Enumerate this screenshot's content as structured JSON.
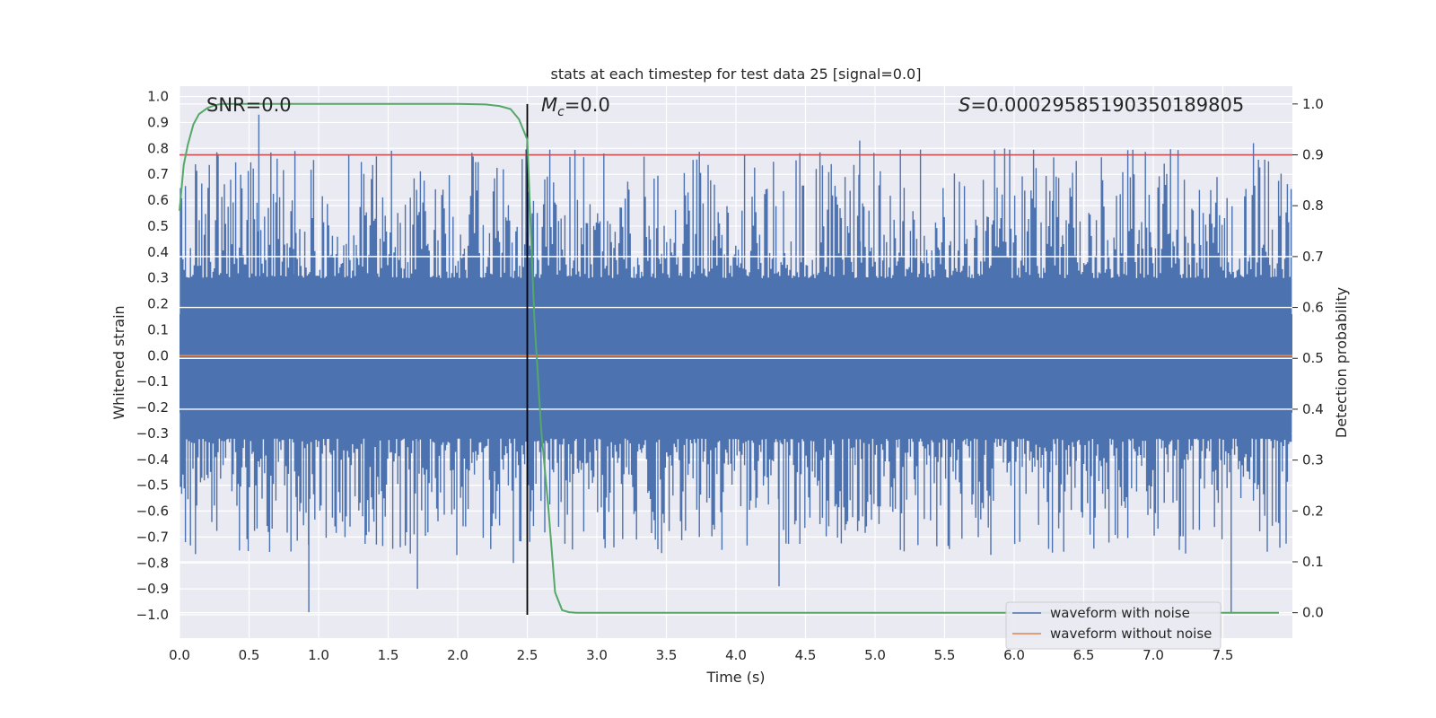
{
  "chart_data": {
    "type": "line",
    "title": "stats at each timestep for test data 25 [signal=0.0]",
    "xlabel": "Time (s)",
    "ylabel": "Whitened strain",
    "y2label": "Detection probability",
    "xlim": [
      0.0,
      8.0
    ],
    "ylim": [
      -1.09,
      1.04
    ],
    "y2lim": [
      -0.05,
      1.035
    ],
    "xticks": [
      "0.0",
      "0.5",
      "1.0",
      "1.5",
      "2.0",
      "2.5",
      "3.0",
      "3.5",
      "4.0",
      "4.5",
      "5.0",
      "5.5",
      "6.0",
      "6.5",
      "7.0",
      "7.5"
    ],
    "yticks": [
      "1.0",
      "0.9",
      "0.8",
      "0.7",
      "0.6",
      "0.5",
      "0.4",
      "0.3",
      "0.2",
      "0.1",
      "0.0",
      "−0.1",
      "−0.2",
      "−0.3",
      "−0.4",
      "−0.5",
      "−0.6",
      "−0.7",
      "−0.8",
      "−0.9",
      "−1.0"
    ],
    "y2ticks": [
      "1.0",
      "0.9",
      "0.8",
      "0.7",
      "0.6",
      "0.5",
      "0.4",
      "0.3",
      "0.2",
      "0.1",
      "0.0"
    ],
    "annotations": {
      "snr": "SNR=0.0",
      "mc_sym": "M",
      "mc_sub": "c",
      "mc_val": "=0.0",
      "s_sym": "S",
      "s_val": "=0.00029585190350189805"
    },
    "threshold": 0.9,
    "marker_time": 2.5,
    "series": [
      {
        "name": "waveform with noise",
        "color": "#4c72b0",
        "description": "noise between about -1.0 and 0.93",
        "peaks": [
          {
            "x": 0.57,
            "y": 0.93
          },
          {
            "x": 0.83,
            "y": 0.79
          },
          {
            "x": 4.89,
            "y": 0.83
          },
          {
            "x": 7.72,
            "y": 0.82
          },
          {
            "x": 0.93,
            "y": -0.99
          },
          {
            "x": 1.71,
            "y": -0.9
          },
          {
            "x": 2.4,
            "y": -0.8
          },
          {
            "x": 4.31,
            "y": -0.89
          },
          {
            "x": 7.56,
            "y": -0.99
          }
        ]
      },
      {
        "name": "waveform without noise",
        "color": "#dd8452",
        "y": 0.0
      },
      {
        "name": "detection probability",
        "color": "#55a868",
        "axis": "right",
        "x": [
          0.0,
          0.03,
          0.06,
          0.1,
          0.14,
          0.2,
          0.25,
          0.3,
          0.4,
          0.6,
          1.0,
          1.5,
          2.0,
          2.2,
          2.3,
          2.38,
          2.44,
          2.5,
          2.55,
          2.6,
          2.65,
          2.7,
          2.75,
          2.8,
          2.85,
          3.0,
          8.0
        ],
        "y": [
          0.79,
          0.88,
          0.92,
          0.96,
          0.98,
          0.992,
          0.997,
          1.0,
          1.0,
          1.0,
          1.0,
          1.0,
          1.0,
          0.999,
          0.996,
          0.99,
          0.97,
          0.93,
          0.58,
          0.36,
          0.21,
          0.04,
          0.005,
          0.001,
          0.0,
          0.0,
          0.0
        ]
      },
      {
        "name": "threshold",
        "color": "#c44e52",
        "axis": "right",
        "y": 0.9
      }
    ],
    "legend": {
      "placement": "lower-right",
      "entries": [
        {
          "label": "waveform with noise",
          "color": "#4c72b0"
        },
        {
          "label": "waveform without noise",
          "color": "#dd8452"
        }
      ]
    },
    "grid": true,
    "background": "#eaeaf2"
  }
}
